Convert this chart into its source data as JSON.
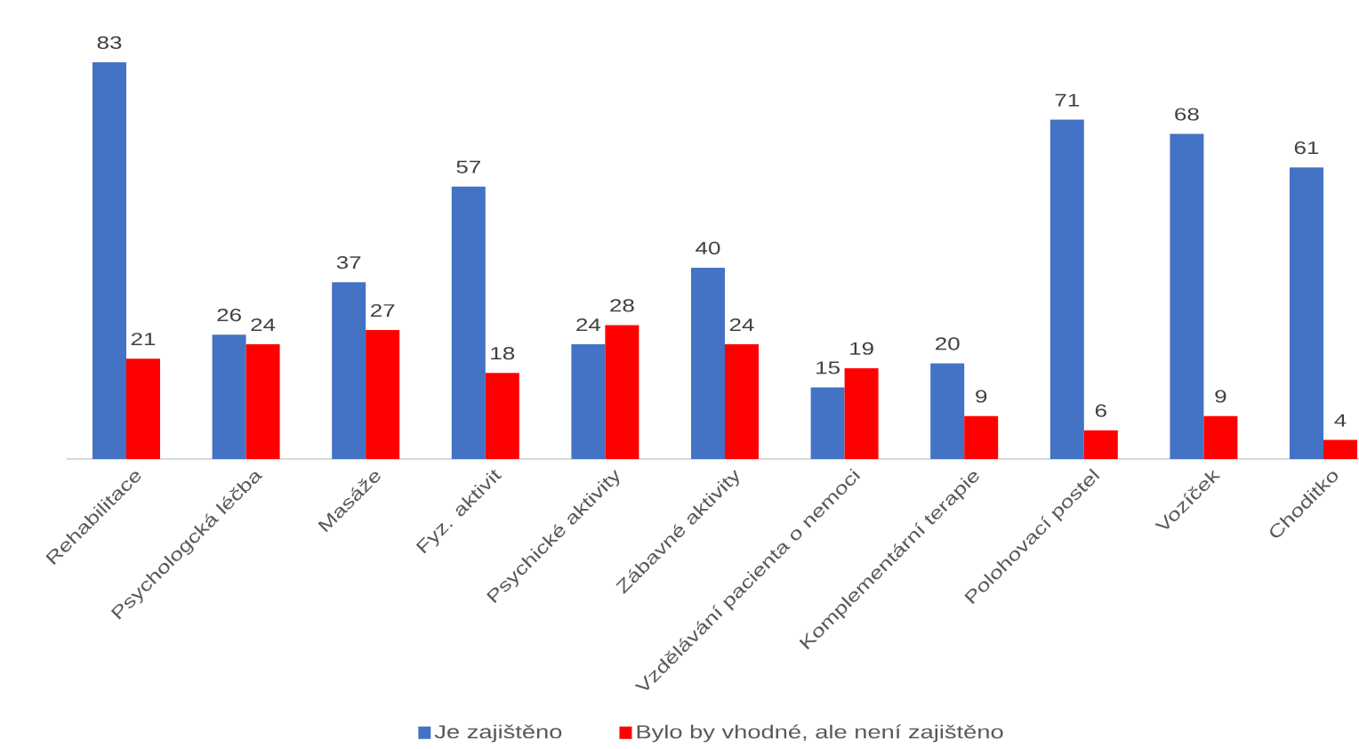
{
  "chart_data": {
    "type": "bar",
    "categories": [
      "Rehabilitace",
      "Psychologcká léčba",
      "Masáže",
      "Fyz. aktivit",
      "Psychické aktivity",
      "Zábavné aktivity",
      "Vzdělávání pacienta o nemoci",
      "Komplementární terapie",
      "Polohovací postel",
      "Vozíček",
      "Choditko"
    ],
    "series": [
      {
        "name": "Je zajištěno",
        "color": "#4472c4",
        "values": [
          83,
          26,
          37,
          57,
          24,
          40,
          15,
          20,
          71,
          68,
          61
        ]
      },
      {
        "name": "Bylo by vhodné, ale není zajištěno",
        "color": "#ff0000",
        "values": [
          21,
          24,
          27,
          18,
          28,
          24,
          19,
          9,
          6,
          9,
          4
        ]
      }
    ],
    "data_labels": true,
    "legend": "bottom"
  }
}
